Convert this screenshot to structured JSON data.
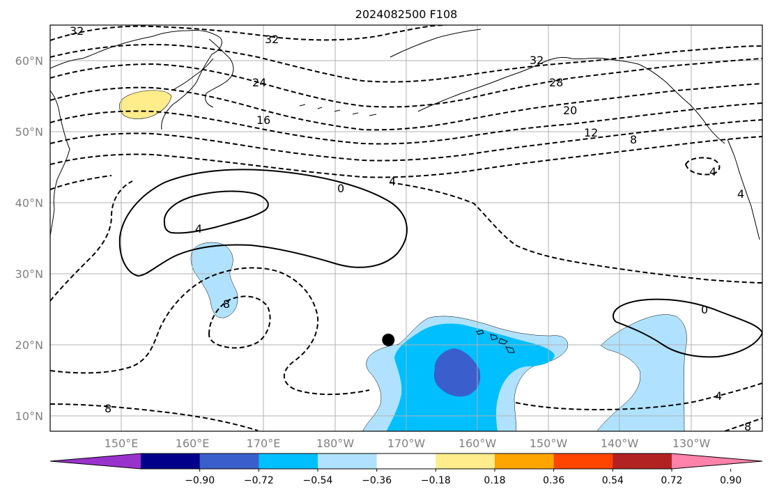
{
  "title": "2024082500 F108",
  "lat_ticks": [
    "60°N",
    "50°N",
    "40°N",
    "30°N",
    "20°N",
    "10°N"
  ],
  "lon_ticks": [
    "150°E",
    "160°E",
    "170°E",
    "180°W",
    "170°W",
    "160°W",
    "150°W",
    "140°W",
    "130°W"
  ],
  "colorbar": {
    "ticks": [
      "−0.90",
      "−0.72",
      "−0.54",
      "−0.36",
      "−0.18",
      "0.18",
      "0.36",
      "0.54",
      "0.72",
      "0.90"
    ],
    "colors": [
      "#9932cc",
      "#00008b",
      "#3a5fcd",
      "#00bfff",
      "#b0e2ff",
      "#ffffff",
      "#ffec8b",
      "#ffa500",
      "#ff4500",
      "#b22222",
      "#ff82ab"
    ]
  },
  "contour_labels": {
    "c32a": "32",
    "c32b": "32",
    "c32c": "32",
    "c28": "28",
    "c24": "24",
    "c20": "20",
    "c16": "16",
    "c12": "12",
    "c8a": "8",
    "c8b": "8",
    "c8c": "8",
    "c8d": "8",
    "c4a": "4",
    "c4b": "4",
    "c4c": "4",
    "c4d": "4",
    "c4e": "4",
    "c0a": "0",
    "c0b": "0"
  },
  "marker": {
    "name": "storm-center-dot",
    "lon": -172.5,
    "lat": 20.7
  },
  "colors": {
    "contour": "#000000",
    "grid": "#b0b0b0",
    "tick_label": "#808080"
  }
}
